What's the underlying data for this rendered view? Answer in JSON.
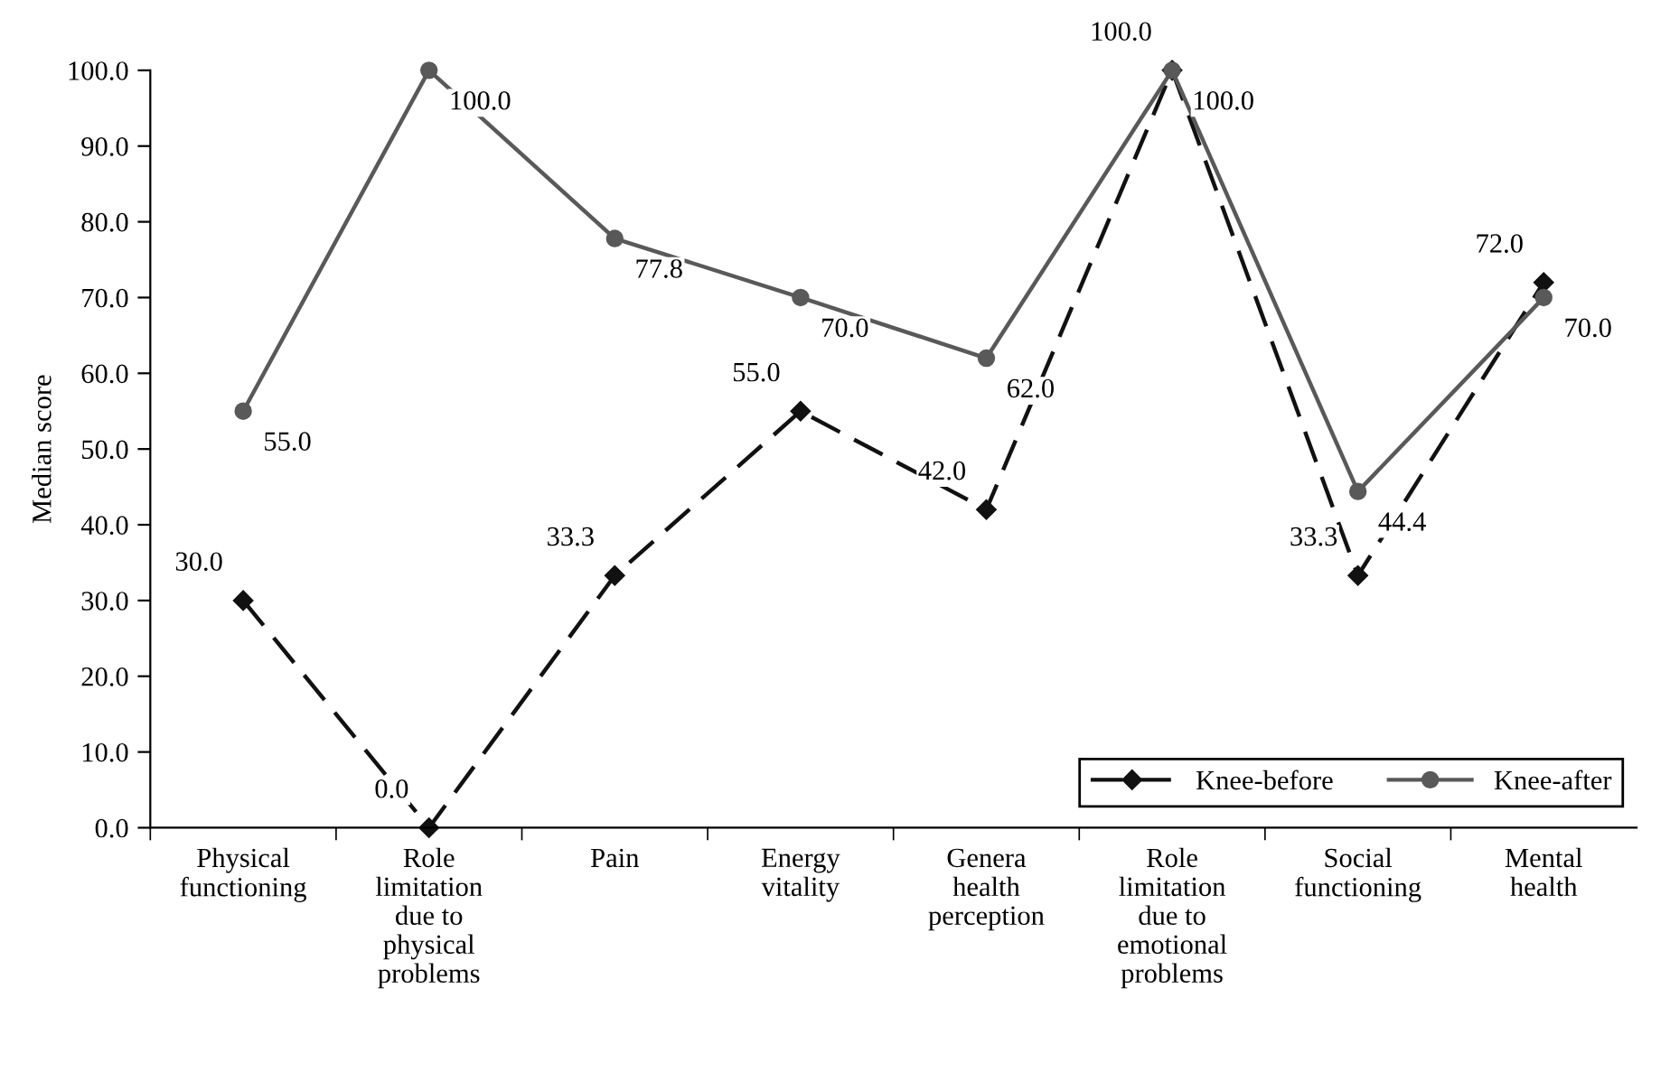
{
  "chart_data": {
    "type": "line",
    "ylabel": "Median score",
    "categories": [
      "Physical\nfunctioning",
      "Role\nlimitation\ndue to\nphysical\nproblems",
      "Pain",
      "Energy\nvitality",
      "Genera\nhealth\nperception",
      "Role\nlimitation\ndue to\nemotional\nproblems",
      "Social\nfunctioning",
      "Mental\nhealth"
    ],
    "series": [
      {
        "name": "Knee-before",
        "color": "#111111",
        "marker": "diamond",
        "line_style": "dashed",
        "values": [
          30.0,
          0.0,
          33.3,
          55.0,
          42.0,
          100.0,
          33.3,
          72.0
        ],
        "value_labels": [
          "30.0",
          "0.0",
          "33.3",
          "55.0",
          "42.0",
          "100.0",
          "33.3",
          "72.0"
        ]
      },
      {
        "name": "Knee-after",
        "color": "#595959",
        "marker": "circle",
        "line_style": "solid",
        "values": [
          55.0,
          100.0,
          77.8,
          70.0,
          62.0,
          100.0,
          44.4,
          70.0
        ],
        "value_labels": [
          "55.0",
          "100.0",
          "77.8",
          "70.0",
          "62.0",
          "100.0",
          "44.4",
          "70.0"
        ]
      }
    ],
    "ylim": [
      0,
      100
    ],
    "yticks": [
      {
        "value": 0,
        "label": "0.0"
      },
      {
        "value": 10,
        "label": "10.0"
      },
      {
        "value": 20,
        "label": "20.0"
      },
      {
        "value": 30,
        "label": "30.0"
      },
      {
        "value": 40,
        "label": "40.0"
      },
      {
        "value": 50,
        "label": "50.0"
      },
      {
        "value": 60,
        "label": "60.0"
      },
      {
        "value": 70,
        "label": "70.0"
      },
      {
        "value": 80,
        "label": "80.0"
      },
      {
        "value": 90,
        "label": "90.0"
      },
      {
        "value": 100,
        "label": "100.0"
      }
    ],
    "grid": false,
    "legend": "bottom right"
  }
}
